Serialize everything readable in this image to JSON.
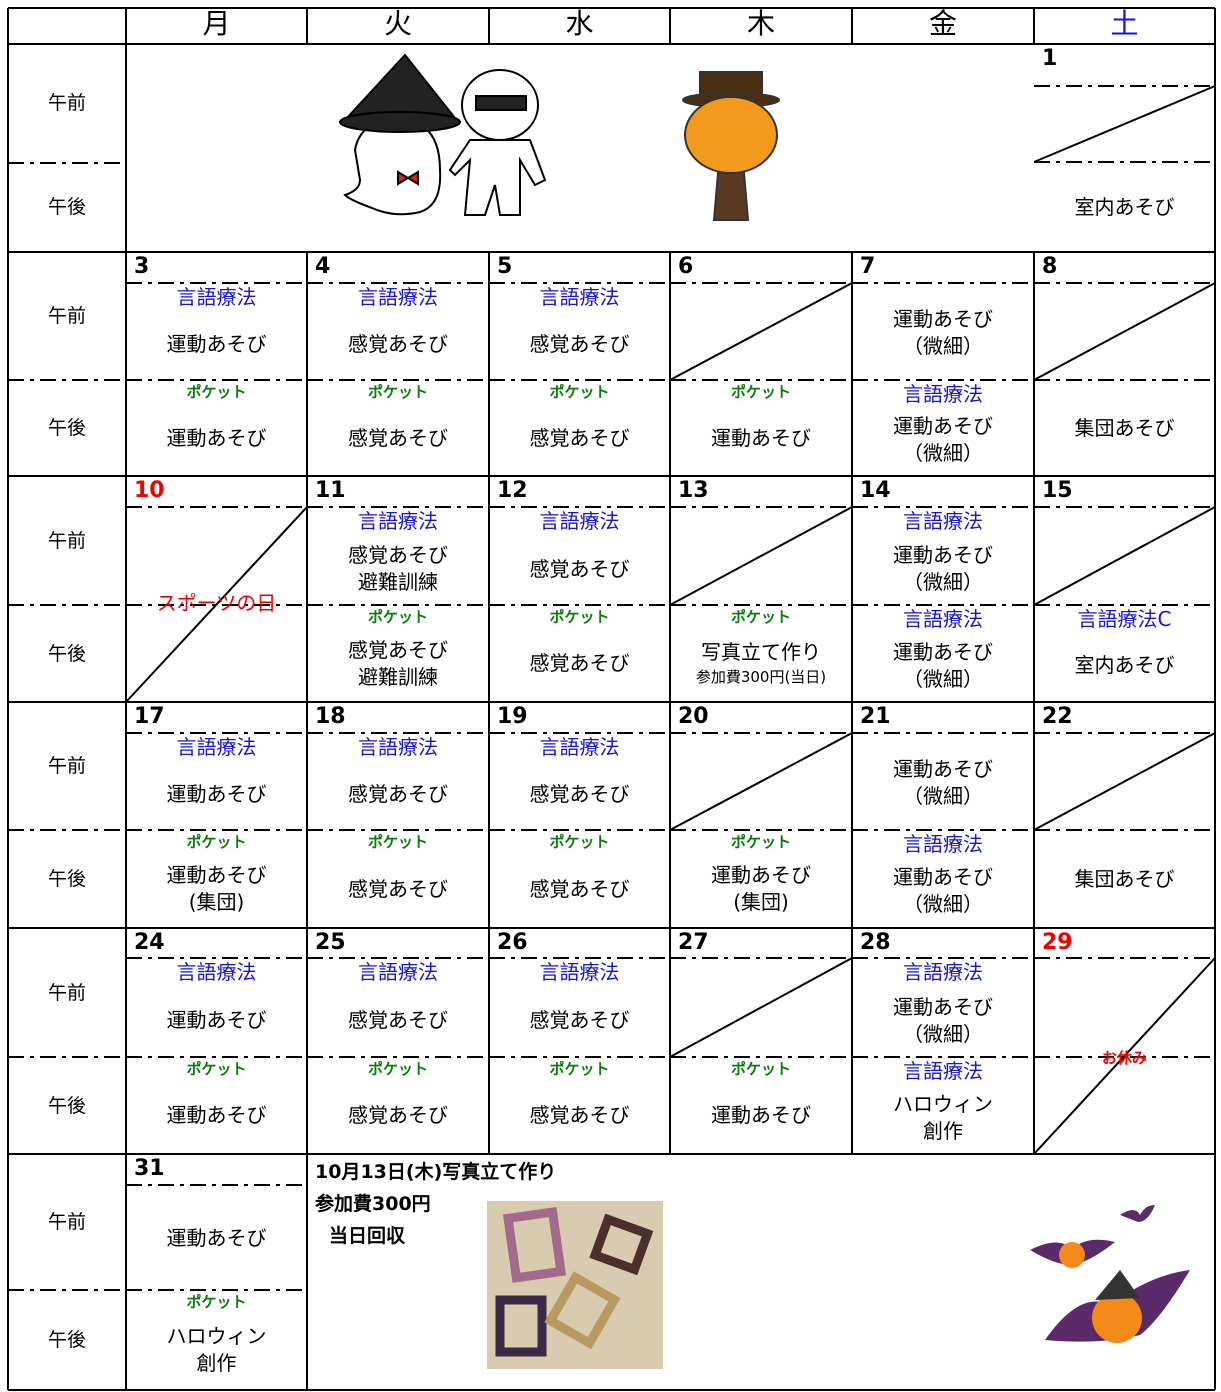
{
  "header": {
    "days": [
      "月",
      "火",
      "水",
      "木",
      "金",
      "土"
    ],
    "periods": [
      "午前",
      "午後"
    ]
  },
  "weeks": [
    {
      "cells": [
        {
          "date": "1",
          "pm": {
            "activity": [
              "室内あそび"
            ]
          }
        }
      ]
    },
    {
      "cells": [
        {
          "date": "3",
          "am": {
            "therapy": "言語療法",
            "activity": [
              "運動あそび"
            ]
          },
          "pm": {
            "pocket": "ポケット",
            "activity": [
              "運動あそび"
            ]
          }
        },
        {
          "date": "4",
          "am": {
            "therapy": "言語療法",
            "activity": [
              "感覚あそび"
            ]
          },
          "pm": {
            "pocket": "ポケット",
            "activity": [
              "感覚あそび"
            ]
          }
        },
        {
          "date": "5",
          "am": {
            "therapy": "言語療法",
            "activity": [
              "感覚あそび"
            ]
          },
          "pm": {
            "pocket": "ポケット",
            "activity": [
              "感覚あそび"
            ]
          }
        },
        {
          "date": "6",
          "pm": {
            "pocket": "ポケット",
            "activity": [
              "運動あそび"
            ]
          }
        },
        {
          "date": "7",
          "am": {
            "activity": [
              "運動あそび",
              "（微細）"
            ]
          },
          "pm": {
            "therapy": "言語療法",
            "activity": [
              "運動あそび",
              "（微細）"
            ]
          }
        },
        {
          "date": "8",
          "pm": {
            "activity": [
              "集団あそび"
            ]
          }
        }
      ]
    },
    {
      "cells": [
        {
          "date": "10",
          "holiday": "スポーツの日"
        },
        {
          "date": "11",
          "am": {
            "therapy": "言語療法",
            "activity": [
              "感覚あそび",
              "避難訓練"
            ]
          },
          "pm": {
            "pocket": "ポケット",
            "activity": [
              "感覚あそび",
              "避難訓練"
            ]
          }
        },
        {
          "date": "12",
          "am": {
            "therapy": "言語療法",
            "activity": [
              "感覚あそび"
            ]
          },
          "pm": {
            "pocket": "ポケット",
            "activity": [
              "感覚あそび"
            ]
          }
        },
        {
          "date": "13",
          "pm": {
            "pocket": "ポケット",
            "activity": [
              "写真立て作り",
              "参加費300円(当日)"
            ]
          }
        },
        {
          "date": "14",
          "am": {
            "therapy": "言語療法",
            "activity": [
              "運動あそび",
              "（微細）"
            ]
          },
          "pm": {
            "therapy": "言語療法",
            "activity": [
              "運動あそび",
              "（微細）"
            ]
          }
        },
        {
          "date": "15",
          "pm": {
            "therapy": "言語療法C",
            "activity": [
              "室内あそび"
            ]
          }
        }
      ]
    },
    {
      "cells": [
        {
          "date": "17",
          "am": {
            "therapy": "言語療法",
            "activity": [
              "運動あそび"
            ]
          },
          "pm": {
            "pocket": "ポケット",
            "activity": [
              "運動あそび",
              "(集団)"
            ]
          }
        },
        {
          "date": "18",
          "am": {
            "therapy": "言語療法",
            "activity": [
              "感覚あそび"
            ]
          },
          "pm": {
            "pocket": "ポケット",
            "activity": [
              "感覚あそび"
            ]
          }
        },
        {
          "date": "19",
          "am": {
            "therapy": "言語療法",
            "activity": [
              "感覚あそび"
            ]
          },
          "pm": {
            "pocket": "ポケット",
            "activity": [
              "感覚あそび"
            ]
          }
        },
        {
          "date": "20",
          "pm": {
            "pocket": "ポケット",
            "activity": [
              "運動あそび",
              "(集団)"
            ]
          }
        },
        {
          "date": "21",
          "am": {
            "activity": [
              "運動あそび",
              "（微細）"
            ]
          },
          "pm": {
            "therapy": "言語療法",
            "activity": [
              "運動あそび",
              "（微細）"
            ]
          }
        },
        {
          "date": "22",
          "pm": {
            "activity": [
              "集団あそび"
            ]
          }
        }
      ]
    },
    {
      "cells": [
        {
          "date": "24",
          "am": {
            "therapy": "言語療法",
            "activity": [
              "運動あそび"
            ]
          },
          "pm": {
            "pocket": "ポケット",
            "activity": [
              "運動あそび"
            ]
          }
        },
        {
          "date": "25",
          "am": {
            "therapy": "言語療法",
            "activity": [
              "感覚あそび"
            ]
          },
          "pm": {
            "pocket": "ポケット",
            "activity": [
              "感覚あそび"
            ]
          }
        },
        {
          "date": "26",
          "am": {
            "therapy": "言語療法",
            "activity": [
              "感覚あそび"
            ]
          },
          "pm": {
            "pocket": "ポケット",
            "activity": [
              "感覚あそび"
            ]
          }
        },
        {
          "date": "27",
          "pm": {
            "pocket": "ポケット",
            "activity": [
              "運動あそび"
            ]
          }
        },
        {
          "date": "28",
          "am": {
            "therapy": "言語療法",
            "activity": [
              "運動あそび",
              "（微細）"
            ]
          },
          "pm": {
            "therapy": "言語療法",
            "activity": [
              "ハロウィン",
              "創作"
            ]
          }
        },
        {
          "date": "29",
          "note": "お休み"
        }
      ]
    },
    {
      "cells": [
        {
          "date": "31",
          "am": {
            "activity": [
              "運動あそび"
            ]
          },
          "pm": {
            "pocket": "ポケット",
            "activity": [
              "ハロウィン",
              "創作"
            ]
          }
        }
      ],
      "note": [
        "10月13日(木)写真立て作り",
        "参加費300円",
        "当日回収"
      ]
    }
  ]
}
